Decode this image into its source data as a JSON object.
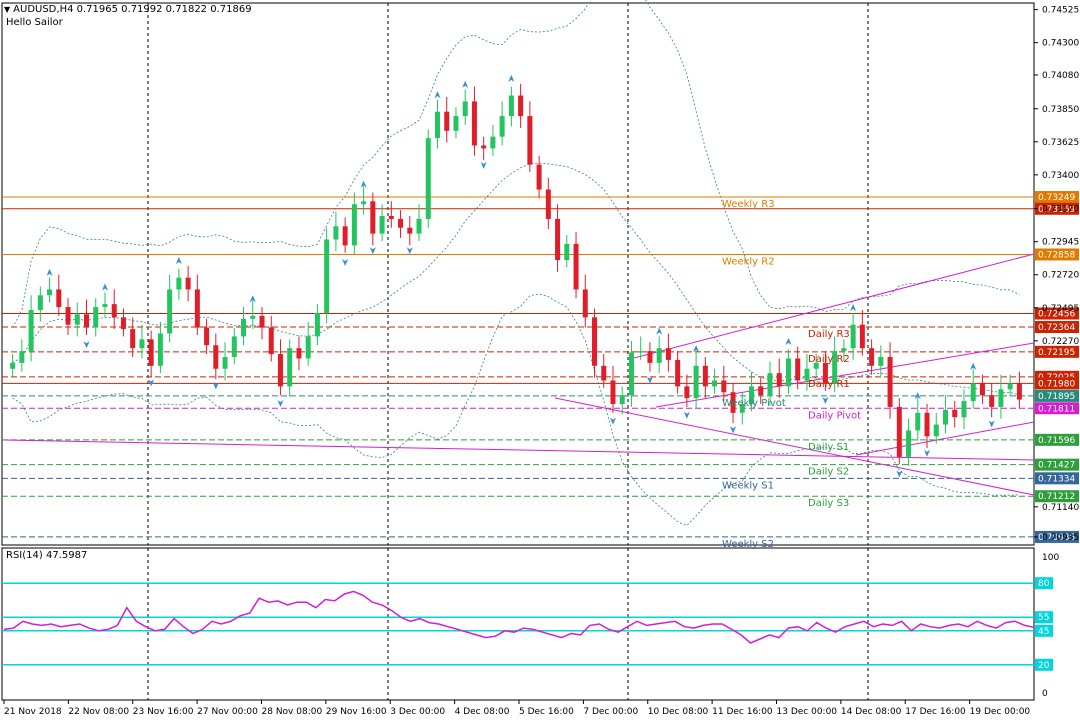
{
  "header": {
    "symbol_line": "AUDUSD,H4  0.71965 0.71992 0.71822 0.71869",
    "subtitle": "Hello Sailor"
  },
  "rsi_header": "RSI(14) 47.5987",
  "colors": {
    "bull": "#22c55e",
    "bear": "#e11d2a",
    "weekly_level": "#e07b00",
    "daily_level": "#cc2200",
    "pivot": "#d21fd2",
    "support": "#2e9e3a",
    "weekly_support": "#336699",
    "band": "#2a8a7a",
    "rsi_line": "#d21fd2",
    "rsi_levels": "#00d5e0",
    "fractal": "#2f8fd8"
  },
  "chart_data": {
    "type": "candlestick",
    "price_axis": {
      "ylim": [
        0.7088,
        0.7457
      ],
      "ticks": [
        "0.74525",
        "0.74300",
        "0.74080",
        "0.73850",
        "0.73625",
        "0.73400",
        "0.73170",
        "0.72945",
        "0.72720",
        "0.72495",
        "0.72270",
        "0.71140",
        "0.70935"
      ]
    },
    "x_tick_labels": [
      "21 Nov 2018",
      "22 Nov 08:00",
      "23 Nov 16:00",
      "27 Nov 00:00",
      "28 Nov 08:00",
      "29 Nov 16:00",
      "3 Dec 00:00",
      "4 Dec 08:00",
      "5 Dec 16:00",
      "7 Dec 00:00",
      "10 Dec 08:00",
      "11 Dec 16:00",
      "13 Dec 00:00",
      "14 Dec 08:00",
      "17 Dec 16:00",
      "19 Dec 00:00"
    ],
    "candles_close": [
      0.7212,
      0.722,
      0.7248,
      0.7258,
      0.7262,
      0.725,
      0.7238,
      0.7245,
      0.7236,
      0.725,
      0.7252,
      0.7243,
      0.7235,
      0.7222,
      0.7228,
      0.721,
      0.7232,
      0.7262,
      0.727,
      0.7262,
      0.7236,
      0.7224,
      0.7208,
      0.7216,
      0.723,
      0.7242,
      0.7244,
      0.7236,
      0.7218,
      0.7196,
      0.7222,
      0.7215,
      0.723,
      0.7246,
      0.7296,
      0.7305,
      0.7292,
      0.732,
      0.7322,
      0.73,
      0.7312,
      0.731,
      0.7304,
      0.73,
      0.731,
      0.7365,
      0.7383,
      0.737,
      0.738,
      0.739,
      0.736,
      0.7358,
      0.7366,
      0.738,
      0.7394,
      0.738,
      0.7347,
      0.733,
      0.731,
      0.7282,
      0.7293,
      0.7262,
      0.7243,
      0.721,
      0.72,
      0.7184,
      0.719,
      0.7219,
      0.722,
      0.7212,
      0.7222,
      0.7214,
      0.7196,
      0.7188,
      0.721,
      0.7196,
      0.72,
      0.7192,
      0.7178,
      0.7184,
      0.7196,
      0.719,
      0.7205,
      0.7196,
      0.7215,
      0.72,
      0.7208,
      0.7212,
      0.7198,
      0.722,
      0.7222,
      0.7238,
      0.7222,
      0.721,
      0.7216,
      0.7182,
      0.7148,
      0.7166,
      0.7178,
      0.7162,
      0.717,
      0.718,
      0.7175,
      0.7186,
      0.7198,
      0.719,
      0.7182,
      0.7194,
      0.7198,
      0.7187
    ],
    "price_levels": [
      {
        "value": "0.73249",
        "name": "Weekly R3",
        "color": "weekly_level"
      },
      {
        "value": "0.73169",
        "name": "",
        "color": "daily_level"
      },
      {
        "value": "0.72858",
        "name": "Weekly R2",
        "color": "weekly_level"
      },
      {
        "value": "0.72456",
        "name": "",
        "color": "daily_level"
      },
      {
        "value": "0.72364",
        "name": "Daily R3",
        "color": "daily_level"
      },
      {
        "value": "0.72195",
        "name": "Daily R2",
        "color": "daily_level"
      },
      {
        "value": "0.72025",
        "name": "Daily R1",
        "color": "daily_level"
      },
      {
        "value": "0.71980",
        "name": "",
        "color": "daily_level"
      },
      {
        "value": "0.71895",
        "name": "Weekly Pivot",
        "color": "band"
      },
      {
        "value": "0.71811",
        "name": "Daily Pivot",
        "color": "pivot"
      },
      {
        "value": "0.71596",
        "name": "Daily S1",
        "color": "support"
      },
      {
        "value": "0.71427",
        "name": "Daily S2",
        "color": "support"
      },
      {
        "value": "0.71334",
        "name": "Weekly S1",
        "color": "weekly_support"
      },
      {
        "value": "0.71212",
        "name": "Daily S3",
        "color": "support"
      },
      {
        "value": "0.70935",
        "name": "Weekly S2",
        "color": "weekly_support"
      }
    ],
    "rsi": {
      "ylim": [
        0,
        100
      ],
      "axis_labels": [
        "100",
        "80",
        "55",
        "45",
        "20",
        "0"
      ],
      "levels": [
        80,
        55,
        45,
        20
      ],
      "level_labels": [
        "80",
        "55",
        "45",
        "20"
      ],
      "values": [
        46,
        47,
        52,
        50,
        49,
        50,
        48,
        49,
        50,
        47,
        45,
        46,
        49,
        62,
        52,
        48,
        45,
        46,
        54,
        48,
        43,
        46,
        52,
        50,
        52,
        56,
        58,
        69,
        66,
        67,
        64,
        66,
        66,
        62,
        68,
        67,
        72,
        74,
        71,
        66,
        64,
        60,
        55,
        52,
        54,
        51,
        50,
        48,
        46,
        44,
        42,
        40,
        41,
        45,
        44,
        47,
        46,
        44,
        42,
        40,
        43,
        42,
        49,
        50,
        46,
        44,
        48,
        52,
        49,
        50,
        51,
        52,
        48,
        47,
        49,
        50,
        50,
        46,
        42,
        36,
        39,
        42,
        40,
        47,
        48,
        45,
        51,
        47,
        44,
        48,
        50,
        52,
        48,
        50,
        49,
        52,
        45,
        50,
        48,
        47,
        49,
        50,
        48,
        52,
        49,
        47,
        51,
        52,
        49,
        47.6
      ]
    }
  }
}
